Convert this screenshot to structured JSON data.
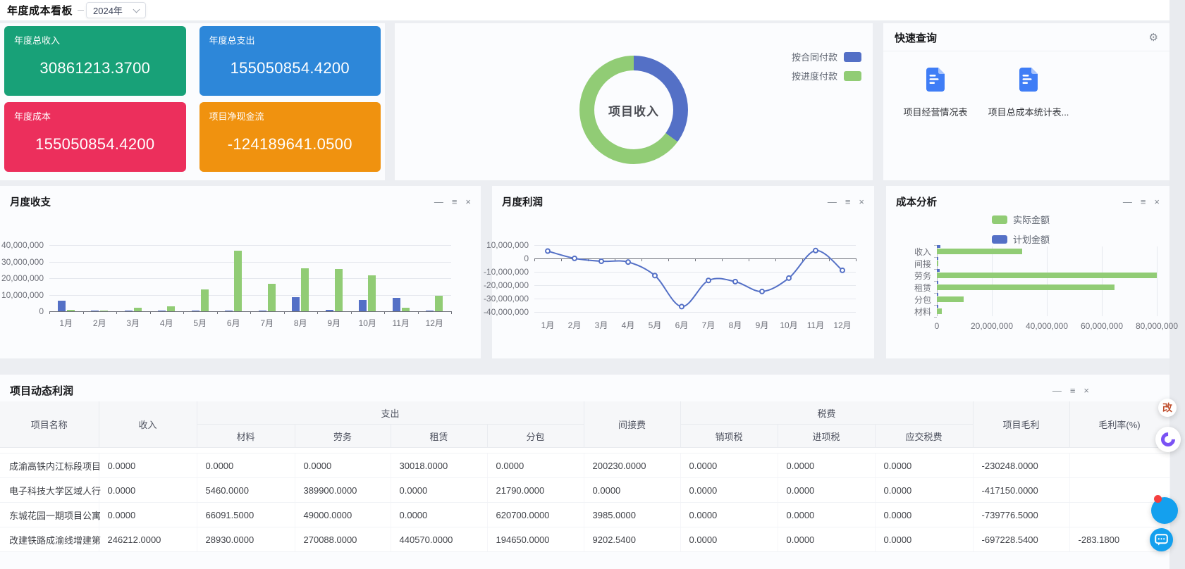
{
  "topbar": {
    "title": "年度成本看板",
    "year": "2024年"
  },
  "icons": {
    "gear": "⚙",
    "minimize": "—",
    "menu": "≡",
    "close": "×"
  },
  "kpi_cards": [
    {
      "label": "年度总收入",
      "value": "30861213.3700",
      "color": "#18a178"
    },
    {
      "label": "年度总支出",
      "value": "155050854.4200",
      "color": "#2d87d9"
    },
    {
      "label": "年度成本",
      "value": "155050854.4200",
      "color": "#ec2f5c"
    },
    {
      "label": "项目净现金流",
      "value": "-124189641.0500",
      "color": "#f0920f"
    }
  ],
  "quick_query": {
    "title": "快速查询",
    "items": [
      "项目经营情况表",
      "项目总成本统计表..."
    ]
  },
  "chart_data": [
    {
      "type": "pie",
      "title": "项目收入",
      "legend_position": "right",
      "slices": [
        {
          "label": "按合同付款",
          "percent": 35,
          "color": "#5470c6"
        },
        {
          "label": "按进度付款",
          "percent": 65,
          "color": "#91cc75"
        }
      ]
    },
    {
      "type": "bar",
      "title": "月度收支",
      "categories": [
        "1月",
        "2月",
        "3月",
        "4月",
        "5月",
        "6月",
        "7月",
        "8月",
        "9月",
        "10月",
        "11月",
        "12月"
      ],
      "series": [
        {
          "name": "收入",
          "color": "#5470c6",
          "values": [
            6200000,
            400000,
            80000,
            300000,
            200000,
            500000,
            250000,
            8500000,
            800000,
            6800000,
            8000000,
            300000
          ]
        },
        {
          "name": "支出",
          "color": "#91cc75",
          "values": [
            700000,
            350000,
            2200000,
            3000000,
            13000000,
            36500000,
            16700000,
            25800000,
            25500000,
            21500000,
            2100000,
            9200000
          ]
        }
      ],
      "ylim": [
        0,
        40000000
      ],
      "yticks": [
        "0",
        "10,000,000",
        "20,000,000",
        "30,000,000",
        "40,000,000"
      ],
      "grid": true,
      "legend_position": "none"
    },
    {
      "type": "line",
      "title": "月度利润",
      "smooth": true,
      "color": "#5470c6",
      "categories": [
        "1月",
        "2月",
        "3月",
        "4月",
        "5月",
        "6月",
        "7月",
        "8月",
        "9月",
        "10月",
        "11月",
        "12月"
      ],
      "values": [
        5500000,
        50000,
        -2100000,
        -2700000,
        -12800000,
        -36000000,
        -16450000,
        -17300000,
        -24700000,
        -14700000,
        5900000,
        -8900000
      ],
      "ylim": [
        -40000000,
        10000000
      ],
      "yticks_top_down": [
        "10,000,000",
        "0",
        "-10,000,000",
        "-20,000,000",
        "-30,000,000",
        "-40,000,000"
      ],
      "grid": true,
      "legend_position": "none"
    },
    {
      "type": "bar",
      "orientation": "horizontal",
      "title": "成本分析",
      "categories": [
        "收入",
        "间接",
        "劳务",
        "租赁",
        "分包",
        "材料"
      ],
      "series": [
        {
          "name": "实际金额",
          "color": "#91cc75",
          "values": [
            31000000,
            300000,
            80000000,
            64500000,
            9700000,
            1800000
          ]
        },
        {
          "name": "计划金额",
          "color": "#5470c6",
          "values": [
            1300000,
            150000,
            900000,
            250000,
            350000,
            200000
          ]
        }
      ],
      "xlim": [
        0,
        80000000
      ],
      "xticks": [
        "0",
        "20,000,000",
        "40,000,000",
        "60,000,000",
        "80,000,000"
      ],
      "grid": true,
      "legend_position": "top"
    }
  ],
  "table": {
    "title": "项目动态利润",
    "col_groups": [
      {
        "label": "项目名称"
      },
      {
        "label": "收入"
      },
      {
        "label": "支出",
        "children": [
          "材料",
          "劳务",
          "租赁",
          "分包"
        ]
      },
      {
        "label": "间接费"
      },
      {
        "label": "税费",
        "children": [
          "销项税",
          "进项税",
          "应交税费"
        ]
      },
      {
        "label": "项目毛利"
      },
      {
        "label": "毛利率(%)"
      }
    ],
    "rows": [
      [
        "成渝高铁内江标段项目",
        "0.0000",
        "0.0000",
        "0.0000",
        "30018.0000",
        "0.0000",
        "200230.0000",
        "0.0000",
        "0.0000",
        "0.0000",
        "-230248.0000",
        ""
      ],
      [
        "电子科技大学区域人行",
        "0.0000",
        "5460.0000",
        "389900.0000",
        "0.0000",
        "21790.0000",
        "0.0000",
        "0.0000",
        "0.0000",
        "0.0000",
        "-417150.0000",
        ""
      ],
      [
        "东城花园一期项目公寓",
        "0.0000",
        "66091.5000",
        "49000.0000",
        "0.0000",
        "620700.0000",
        "3985.0000",
        "0.0000",
        "0.0000",
        "0.0000",
        "-739776.5000",
        ""
      ],
      [
        "改建铁路成渝线增建第",
        "246212.0000",
        "28930.0000",
        "270088.0000",
        "440570.0000",
        "194650.0000",
        "9202.5400",
        "0.0000",
        "0.0000",
        "0.0000",
        "-697228.5400",
        "-283.1800"
      ]
    ]
  },
  "floating": {
    "badge": "改"
  }
}
